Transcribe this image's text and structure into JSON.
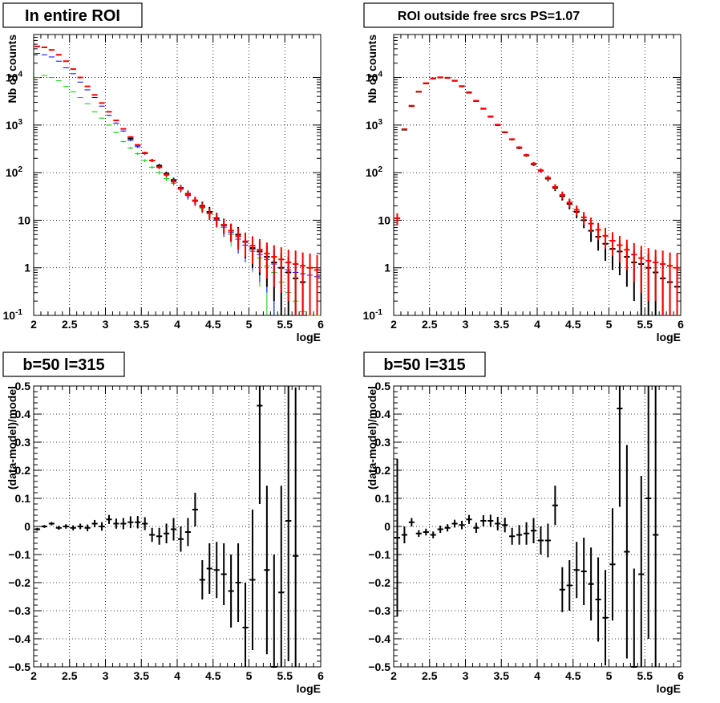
{
  "chart_data": [
    {
      "type": "scatter",
      "title": "In entire ROI",
      "xlabel": "logE",
      "ylabel": "Nb of counts",
      "xlim": [
        2,
        6
      ],
      "ylim": [
        0.1,
        80000
      ],
      "yscale": "log",
      "grid": true,
      "xticks": [
        "2",
        "2.5",
        "3",
        "3.5",
        "4",
        "4.5",
        "5",
        "5.5",
        "6"
      ],
      "yticks": [
        {
          "v": 0.1,
          "label": "10",
          "sup": "-1"
        },
        {
          "v": 1,
          "label": "1",
          "sup": ""
        },
        {
          "v": 10,
          "label": "10",
          "sup": ""
        },
        {
          "v": 100,
          "label": "10",
          "sup": "2"
        },
        {
          "v": 1000,
          "label": "10",
          "sup": "3"
        },
        {
          "v": 10000,
          "label": "10",
          "sup": "4"
        }
      ],
      "x": [
        2.05,
        2.15,
        2.25,
        2.35,
        2.45,
        2.55,
        2.65,
        2.75,
        2.85,
        2.95,
        3.05,
        3.15,
        3.25,
        3.35,
        3.45,
        3.55,
        3.65,
        3.75,
        3.85,
        3.95,
        4.05,
        4.15,
        4.25,
        4.35,
        4.45,
        4.55,
        4.65,
        4.75,
        4.85,
        4.95,
        5.05,
        5.15,
        5.25,
        5.35,
        5.45,
        5.55,
        5.65,
        5.75,
        5.85,
        5.95
      ],
      "series": [
        {
          "color": "#00cc00",
          "style": "err-thin",
          "values": [
            10000,
            11000,
            10000,
            8500,
            6500,
            5000,
            3800,
            2800,
            1900,
            1400,
            1000,
            700,
            450,
            330,
            250,
            180,
            130,
            100,
            75,
            60,
            45,
            35,
            25,
            18,
            14,
            10,
            7,
            5,
            4,
            3,
            2.2,
            1.6,
            1.1,
            0.8,
            0.5,
            0.3,
            0.2,
            0.12,
            0.1,
            0.1
          ],
          "err": [
            100,
            100,
            100,
            90,
            80,
            70,
            60,
            50,
            40,
            35,
            30,
            25,
            20,
            17,
            15,
            13,
            11,
            9,
            8,
            7,
            6,
            5,
            5,
            4,
            3,
            3,
            2.6,
            2.2,
            2,
            1.7,
            1.4,
            1.2,
            1,
            0.8,
            0.6,
            0.5,
            0.4,
            0.3,
            0.25,
            0.2
          ]
        },
        {
          "color": "#0000ff",
          "style": "err-thin",
          "values": [
            32000,
            30000,
            27000,
            22000,
            16000,
            12000,
            8000,
            5500,
            3800,
            2500,
            1600,
            1100,
            750,
            480,
            350,
            250,
            180,
            130,
            90,
            65,
            45,
            33,
            25,
            20,
            14,
            10,
            7.5,
            5.5,
            4,
            3,
            2.4,
            1.9,
            1.5,
            1.2,
            1,
            0.9,
            0.8,
            0.75,
            0.7,
            0.65
          ],
          "err": [
            200,
            200,
            200,
            150,
            130,
            110,
            90,
            75,
            60,
            50,
            40,
            33,
            27,
            22,
            19,
            16,
            13,
            11,
            9,
            8,
            7,
            6,
            5,
            4,
            4,
            3,
            3,
            2,
            2,
            1.7,
            1.5,
            1.4,
            1.2,
            1.1,
            1,
            0.9,
            0.9,
            0.9,
            0.8,
            0.8
          ]
        },
        {
          "color": "#000000",
          "style": "err-thick",
          "values": [
            null,
            null,
            null,
            null,
            null,
            null,
            null,
            null,
            null,
            null,
            null,
            null,
            null,
            520,
            380,
            260,
            180,
            140,
            95,
            70,
            48,
            36,
            26,
            20,
            15,
            11,
            8,
            6,
            5,
            3.5,
            2.6,
            2.2,
            1.7,
            1.3,
            1,
            0.8,
            0.6,
            0.5,
            null,
            null
          ],
          "err": [
            0,
            0,
            0,
            0,
            0,
            0,
            0,
            0,
            0,
            0,
            0,
            0,
            0,
            20,
            20,
            15,
            13,
            12,
            10,
            8,
            7,
            6,
            5,
            4.5,
            4,
            3.3,
            2.8,
            2.4,
            2.2,
            1.9,
            1.6,
            1.5,
            1.3,
            1.1,
            1,
            0.9,
            0.8,
            0.7,
            0,
            0
          ]
        },
        {
          "color": "#ff0000",
          "style": "err-thick",
          "values": [
            45000,
            43000,
            38000,
            30000,
            22000,
            15000,
            10000,
            6500,
            4300,
            2900,
            1900,
            1250,
            830,
            560,
            380,
            260,
            180,
            130,
            90,
            65,
            47,
            35,
            26,
            19,
            14,
            10.5,
            8,
            6,
            4.6,
            3.6,
            2.9,
            2.4,
            2,
            1.7,
            1.5,
            1.3,
            1.2,
            1.1,
            1,
            0.9
          ],
          "err": [
            200,
            200,
            200,
            170,
            150,
            120,
            100,
            80,
            65,
            54,
            44,
            35,
            29,
            24,
            19,
            16,
            13,
            11,
            9,
            8,
            7,
            6,
            5,
            4.5,
            3.8,
            3.3,
            2.8,
            2.5,
            2.2,
            1.9,
            1.7,
            1.6,
            1.4,
            1.3,
            1.2,
            1.1,
            1.1,
            1,
            1,
            0.95
          ]
        }
      ]
    },
    {
      "type": "scatter",
      "title": "ROI outside free srcs PS=1.07",
      "xlabel": "logE",
      "ylabel": "Nb of counts",
      "xlim": [
        2,
        6
      ],
      "ylim": [
        0.1,
        80000
      ],
      "yscale": "log",
      "grid": true,
      "xticks": [
        "2",
        "2.5",
        "3",
        "3.5",
        "4",
        "4.5",
        "5",
        "5.5",
        "6"
      ],
      "yticks": [
        {
          "v": 0.1,
          "label": "10",
          "sup": "-1"
        },
        {
          "v": 1,
          "label": "1",
          "sup": ""
        },
        {
          "v": 10,
          "label": "10",
          "sup": ""
        },
        {
          "v": 100,
          "label": "10",
          "sup": "2"
        },
        {
          "v": 1000,
          "label": "10",
          "sup": "3"
        },
        {
          "v": 10000,
          "label": "10",
          "sup": "4"
        }
      ],
      "x": [
        2.05,
        2.15,
        2.25,
        2.35,
        2.45,
        2.55,
        2.65,
        2.75,
        2.85,
        2.95,
        3.05,
        3.15,
        3.25,
        3.35,
        3.45,
        3.55,
        3.65,
        3.75,
        3.85,
        3.95,
        4.05,
        4.15,
        4.25,
        4.35,
        4.45,
        4.55,
        4.65,
        4.75,
        4.85,
        4.95,
        5.05,
        5.15,
        5.25,
        5.35,
        5.45,
        5.55,
        5.65,
        5.75,
        5.85,
        5.95
      ],
      "series": [
        {
          "color": "#000000",
          "style": "err-thick",
          "values": [
            11,
            800,
            2500,
            5000,
            7500,
            9500,
            10000,
            9800,
            8500,
            6500,
            4800,
            3200,
            2200,
            1500,
            1000,
            700,
            500,
            330,
            230,
            150,
            110,
            75,
            48,
            32,
            22,
            15,
            10,
            6,
            4.5,
            3.2,
            2.5,
            2.2,
            1.7,
            1.3,
            1.2,
            1,
            0.8,
            0.6,
            0.5,
            0.4
          ],
          "err": [
            2.5,
            28,
            50,
            70,
            85,
            97,
            100,
            99,
            92,
            80,
            69,
            57,
            47,
            39,
            32,
            26,
            22,
            18,
            15,
            12,
            10,
            9,
            7,
            6,
            5,
            4,
            3.2,
            2.5,
            2.2,
            1.8,
            1.6,
            1.5,
            1.3,
            1.1,
            1.1,
            1,
            0.9,
            0.8,
            0.7,
            0.6
          ]
        },
        {
          "color": "#ff0000",
          "style": "err-thick",
          "values": [
            11,
            820,
            2550,
            5050,
            7600,
            9600,
            10100,
            9900,
            8600,
            6600,
            4900,
            3250,
            2230,
            1520,
            1020,
            710,
            505,
            340,
            235,
            155,
            112,
            78,
            50,
            34,
            23.5,
            16.5,
            11.5,
            8.5,
            6.3,
            4.7,
            3.7,
            3,
            2.4,
            1.9,
            1.6,
            1.4,
            1.3,
            1.2,
            1.1,
            1
          ],
          "err": [
            3,
            28,
            50,
            71,
            87,
            98,
            100,
            99,
            93,
            81,
            70,
            57,
            47,
            39,
            32,
            27,
            22,
            18,
            15,
            12,
            11,
            9,
            7,
            6,
            5,
            4,
            3.4,
            2.9,
            2.5,
            2.2,
            1.9,
            1.7,
            1.5,
            1.4,
            1.3,
            1.2,
            1.1,
            1.1,
            1,
            1
          ]
        }
      ]
    },
    {
      "type": "scatter",
      "title": "b=50 l=315",
      "xlabel": "logE",
      "ylabel": "(data-model)/model",
      "xlim": [
        2,
        6
      ],
      "ylim": [
        -0.5,
        0.5
      ],
      "yscale": "linear",
      "grid": true,
      "xticks": [
        "2",
        "2.5",
        "3",
        "3.5",
        "4",
        "4.5",
        "5",
        "5.5",
        "6"
      ],
      "yticks": [
        {
          "v": -0.5,
          "label": "−0.5"
        },
        {
          "v": -0.4,
          "label": "−0.4"
        },
        {
          "v": -0.3,
          "label": "−0.3"
        },
        {
          "v": -0.2,
          "label": "−0.2"
        },
        {
          "v": -0.1,
          "label": "−0.1"
        },
        {
          "v": 0,
          "label": "0"
        },
        {
          "v": 0.1,
          "label": "0.1"
        },
        {
          "v": 0.2,
          "label": "0.2"
        },
        {
          "v": 0.3,
          "label": "0.3"
        },
        {
          "v": 0.4,
          "label": "0.4"
        },
        {
          "v": 0.5,
          "label": "0.5"
        }
      ],
      "x": [
        2.05,
        2.15,
        2.25,
        2.35,
        2.45,
        2.55,
        2.65,
        2.75,
        2.85,
        2.95,
        3.05,
        3.15,
        3.25,
        3.35,
        3.45,
        3.55,
        3.65,
        3.75,
        3.85,
        3.95,
        4.05,
        4.15,
        4.25,
        4.35,
        4.45,
        4.55,
        4.65,
        4.75,
        4.85,
        4.95,
        5.05,
        5.15,
        5.25,
        5.35,
        5.45,
        5.55,
        5.65
      ],
      "series": [
        {
          "color": "#000000",
          "style": "err-thick",
          "values": [
            -0.01,
            0.0,
            0.01,
            -0.005,
            0.0,
            -0.005,
            0.0,
            -0.005,
            0.01,
            0.0,
            0.025,
            0.01,
            0.01,
            0.015,
            0.015,
            0.01,
            -0.03,
            -0.035,
            -0.025,
            -0.01,
            -0.045,
            -0.02,
            0.06,
            -0.19,
            -0.15,
            -0.155,
            -0.17,
            -0.23,
            -0.2,
            -0.36,
            -0.19,
            0.43,
            -0.155,
            -0.5,
            -0.235,
            0.02,
            -0.105
          ],
          "err": [
            0.005,
            0.005,
            0.006,
            0.007,
            0.008,
            0.009,
            0.01,
            0.012,
            0.013,
            0.015,
            0.016,
            0.018,
            0.02,
            0.021,
            0.022,
            0.023,
            0.025,
            0.03,
            0.035,
            0.04,
            0.045,
            0.05,
            0.06,
            0.07,
            0.09,
            0.1,
            0.11,
            0.13,
            0.14,
            0.16,
            0.25,
            0.35,
            0.3,
            0.4,
            0.38,
            0.5,
            0.6
          ]
        }
      ]
    },
    {
      "type": "scatter",
      "title": "b=50 l=315",
      "xlabel": "logE",
      "ylabel": "(data-model)/model",
      "xlim": [
        2,
        6
      ],
      "ylim": [
        -0.5,
        0.5
      ],
      "yscale": "linear",
      "grid": true,
      "xticks": [
        "2",
        "2.5",
        "3",
        "3.5",
        "4",
        "4.5",
        "5",
        "5.5",
        "6"
      ],
      "yticks": [
        {
          "v": -0.5,
          "label": "−0.5"
        },
        {
          "v": -0.4,
          "label": "−0.4"
        },
        {
          "v": -0.3,
          "label": "−0.3"
        },
        {
          "v": -0.2,
          "label": "−0.2"
        },
        {
          "v": -0.1,
          "label": "−0.1"
        },
        {
          "v": 0,
          "label": "0"
        },
        {
          "v": 0.1,
          "label": "0.1"
        },
        {
          "v": 0.2,
          "label": "0.2"
        },
        {
          "v": 0.3,
          "label": "0.3"
        },
        {
          "v": 0.4,
          "label": "0.4"
        },
        {
          "v": 0.5,
          "label": "0.5"
        }
      ],
      "x": [
        2.05,
        2.15,
        2.25,
        2.35,
        2.45,
        2.55,
        2.65,
        2.75,
        2.85,
        2.95,
        3.05,
        3.15,
        3.25,
        3.35,
        3.45,
        3.55,
        3.65,
        3.75,
        3.85,
        3.95,
        4.05,
        4.15,
        4.25,
        4.35,
        4.45,
        4.55,
        4.65,
        4.75,
        4.85,
        4.95,
        5.05,
        5.15,
        5.25,
        5.35,
        5.45,
        5.55,
        5.65
      ],
      "series": [
        {
          "color": "#000000",
          "style": "err-thick",
          "values": [
            -0.04,
            -0.03,
            0.015,
            -0.025,
            -0.02,
            -0.03,
            -0.01,
            -0.005,
            0.01,
            0.005,
            0.025,
            -0.005,
            0.02,
            0.02,
            0.01,
            0.005,
            -0.035,
            -0.03,
            -0.025,
            -0.015,
            -0.05,
            -0.05,
            0.075,
            -0.225,
            -0.21,
            -0.155,
            -0.16,
            -0.205,
            -0.26,
            -0.325,
            -0.135,
            0.42,
            -0.09,
            -0.5,
            -0.17,
            0.1,
            -0.03
          ],
          "err": [
            0.28,
            0.03,
            0.015,
            0.012,
            0.012,
            0.012,
            0.013,
            0.013,
            0.014,
            0.015,
            0.016,
            0.018,
            0.02,
            0.022,
            0.024,
            0.026,
            0.03,
            0.035,
            0.04,
            0.045,
            0.05,
            0.06,
            0.07,
            0.08,
            0.09,
            0.1,
            0.12,
            0.13,
            0.15,
            0.17,
            0.2,
            0.35,
            0.38,
            0.35,
            0.35,
            0.5,
            0.6
          ]
        }
      ]
    }
  ]
}
